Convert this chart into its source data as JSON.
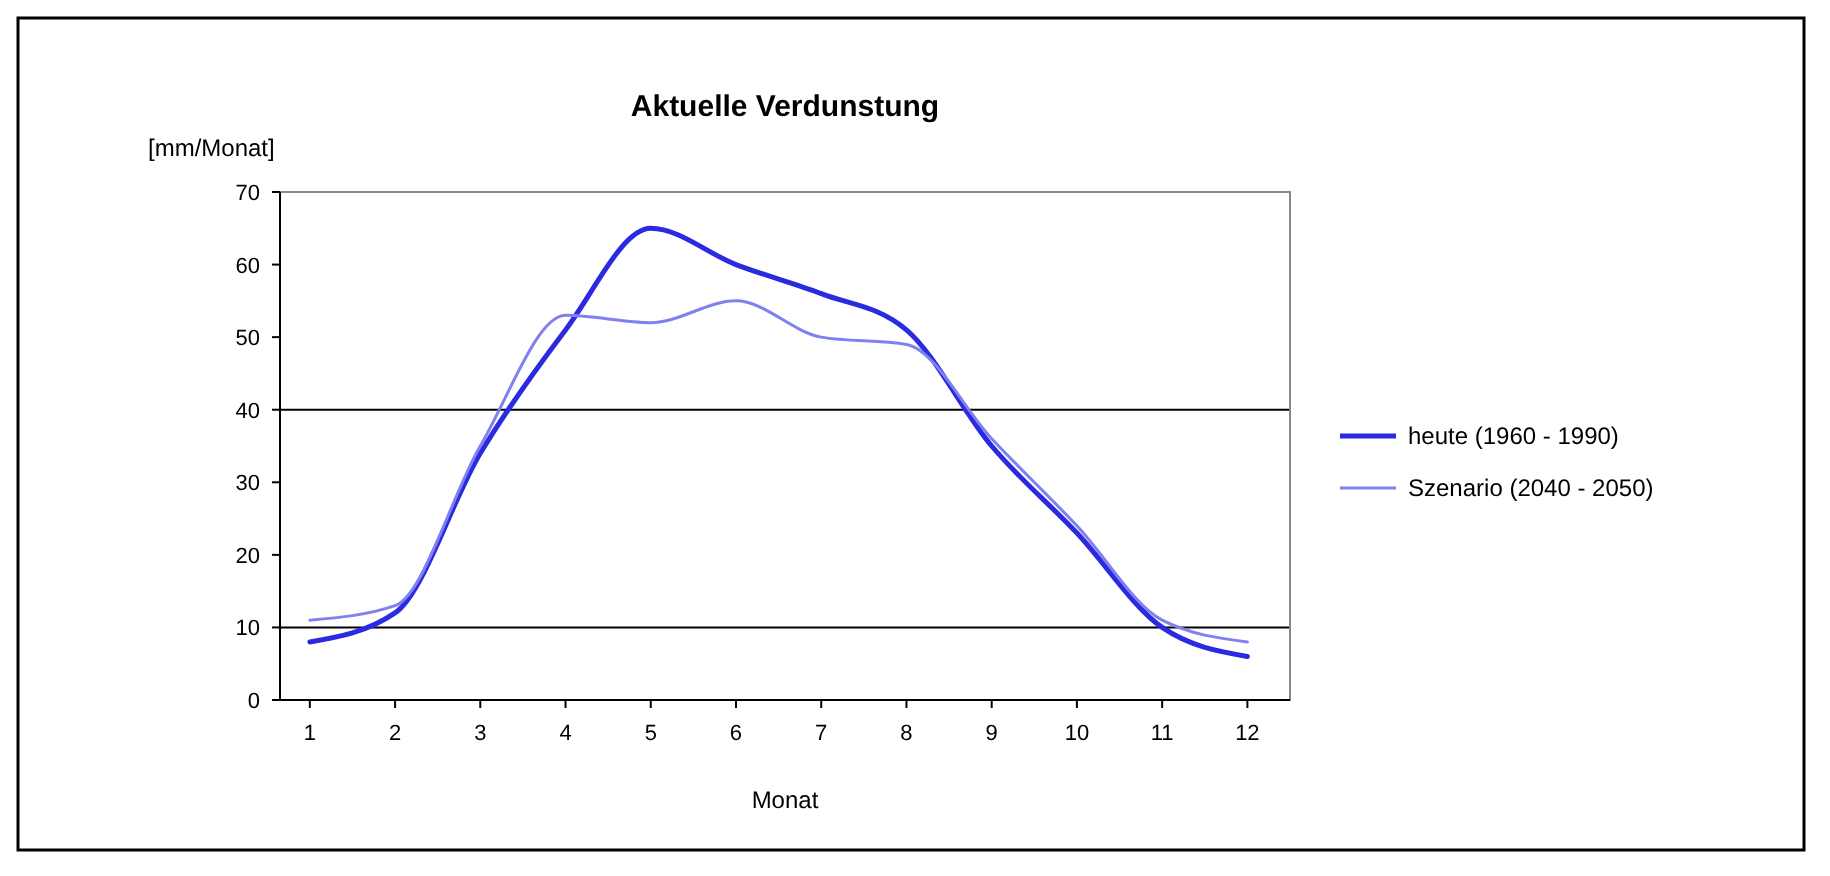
{
  "chart_data": {
    "type": "line",
    "title": "Aktuelle Verdunstung",
    "ylabel": "[mm/Monat]",
    "xlabel": "Monat",
    "x": [
      1,
      2,
      3,
      4,
      5,
      6,
      7,
      8,
      9,
      10,
      11,
      12
    ],
    "xlim": [
      0.65,
      12.5
    ],
    "xticks": [
      1,
      2,
      3,
      4,
      5,
      6,
      7,
      8,
      9,
      10,
      11,
      12
    ],
    "series": [
      {
        "name": "heute (1960 - 1990)",
        "color": "#2a2ae0",
        "values": [
          8,
          12,
          34,
          51,
          65,
          60,
          56,
          51,
          35,
          23,
          10,
          6
        ]
      },
      {
        "name": "Szenario (2040 - 2050)",
        "color": "#8080f0",
        "values": [
          11,
          13,
          35,
          53,
          52,
          55,
          50,
          49,
          36,
          24,
          11,
          8
        ]
      }
    ],
    "ylim": [
      0,
      70
    ],
    "yticks": [
      0,
      10,
      20,
      30,
      40,
      50,
      60,
      70
    ],
    "ref_lines": [
      {
        "axis": "y",
        "value": 10,
        "color": "#000000"
      },
      {
        "axis": "y",
        "value": 40,
        "color": "#000000"
      }
    ],
    "legend": "right",
    "marker": "none",
    "line_style": "solid"
  }
}
